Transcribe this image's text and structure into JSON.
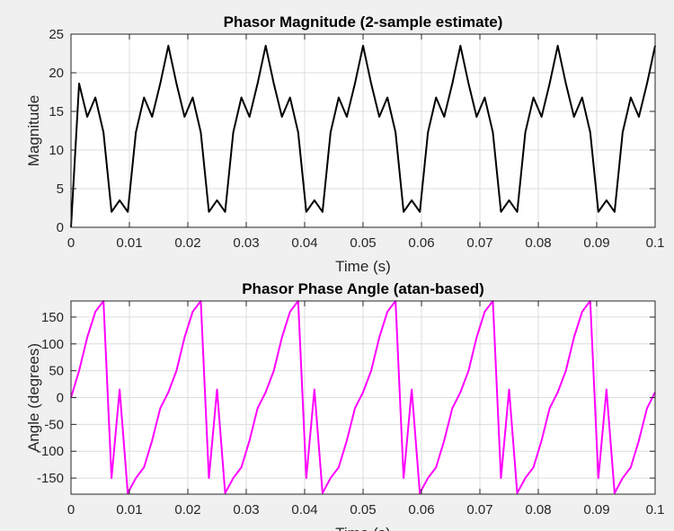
{
  "chart_data": [
    {
      "type": "line",
      "title": "Phasor Magnitude (2-sample estimate)",
      "xlabel": "Time (s)",
      "ylabel": "Magnitude",
      "xlim": [
        0,
        0.1
      ],
      "ylim": [
        0,
        25
      ],
      "xticks": [
        0,
        0.01,
        0.02,
        0.03,
        0.04,
        0.05,
        0.06,
        0.07,
        0.08,
        0.09,
        0.1
      ],
      "xtick_labels": [
        "0",
        "0.01",
        "0.02",
        "0.03",
        "0.04",
        "0.05",
        "0.06",
        "0.07",
        "0.08",
        "0.09",
        "0.1"
      ],
      "yticks": [
        0,
        5,
        10,
        15,
        20,
        25
      ],
      "ytick_labels": [
        "0",
        "5",
        "10",
        "15",
        "20",
        "25"
      ],
      "grid": true,
      "series": [
        {
          "color": "#000000",
          "x": [
            0,
            0.00139,
            0.00278,
            0.00417,
            0.00556,
            0.00694,
            0.00833,
            0.00972,
            0.01111,
            0.0125,
            0.01389,
            0.01528,
            0.01667,
            0.01806,
            0.01944,
            0.02083,
            0.02222,
            0.02361,
            0.025,
            0.02639,
            0.02778,
            0.02917,
            0.03056,
            0.03194,
            0.03333,
            0.03472,
            0.03611,
            0.0375,
            0.03889,
            0.04028,
            0.04167,
            0.04306,
            0.04444,
            0.04583,
            0.04722,
            0.04861,
            0.05,
            0.05139,
            0.05278,
            0.05417,
            0.05556,
            0.05694,
            0.05833,
            0.05972,
            0.06111,
            0.0625,
            0.06389,
            0.06528,
            0.06667,
            0.06806,
            0.06944,
            0.07083,
            0.07222,
            0.07361,
            0.075,
            0.07639,
            0.07778,
            0.07917,
            0.08056,
            0.08194,
            0.08333,
            0.08472,
            0.08611,
            0.0875,
            0.08889,
            0.09028,
            0.09167,
            0.09306,
            0.09444,
            0.09583,
            0.09722,
            0.09861,
            0.1
          ],
          "y": [
            0,
            18.6,
            14.3,
            16.8,
            12.3,
            2.0,
            3.5,
            2.0,
            12.3,
            16.8,
            14.3,
            18.6,
            23.5,
            18.6,
            14.3,
            16.8,
            12.3,
            2.0,
            3.5,
            2.0,
            12.3,
            16.8,
            14.3,
            18.6,
            23.5,
            18.6,
            14.3,
            16.8,
            12.3,
            2.0,
            3.5,
            2.0,
            12.3,
            16.8,
            14.3,
            18.6,
            23.5,
            18.6,
            14.3,
            16.8,
            12.3,
            2.0,
            3.5,
            2.0,
            12.3,
            16.8,
            14.3,
            18.6,
            23.5,
            18.6,
            14.3,
            16.8,
            12.3,
            2.0,
            3.5,
            2.0,
            12.3,
            16.8,
            14.3,
            18.6,
            23.5,
            18.6,
            14.3,
            16.8,
            12.3,
            2.0,
            3.5,
            2.0,
            12.3,
            16.8,
            14.3,
            18.6,
            23.5
          ]
        }
      ]
    },
    {
      "type": "line",
      "title": "Phasor Phase Angle (atan-based)",
      "xlabel": "Time (s)",
      "ylabel": "Angle (degrees)",
      "xlim": [
        0,
        0.1
      ],
      "ylim": [
        -180,
        180
      ],
      "xticks": [
        0,
        0.01,
        0.02,
        0.03,
        0.04,
        0.05,
        0.06,
        0.07,
        0.08,
        0.09,
        0.1
      ],
      "xtick_labels": [
        "0",
        "0.01",
        "0.02",
        "0.03",
        "0.04",
        "0.05",
        "0.06",
        "0.07",
        "0.08",
        "0.09",
        "0.1"
      ],
      "yticks": [
        -150,
        -100,
        -50,
        0,
        50,
        100,
        150
      ],
      "ytick_labels": [
        "-150",
        "-100",
        "-50",
        "0",
        "50",
        "100",
        "150"
      ],
      "grid": true,
      "series": [
        {
          "color": "#ff00ff",
          "x": [
            0,
            0.00139,
            0.00278,
            0.00417,
            0.00556,
            0.00694,
            0.00833,
            0.00972,
            0.01111,
            0.0125,
            0.01389,
            0.01528,
            0.01667,
            0.01806,
            0.01944,
            0.02083,
            0.02222,
            0.02361,
            0.025,
            0.02639,
            0.02778,
            0.02917,
            0.03056,
            0.03194,
            0.03333,
            0.03472,
            0.03611,
            0.0375,
            0.03889,
            0.04028,
            0.04167,
            0.04306,
            0.04444,
            0.04583,
            0.04722,
            0.04861,
            0.05,
            0.05139,
            0.05278,
            0.05417,
            0.05556,
            0.05694,
            0.05833,
            0.05972,
            0.06111,
            0.0625,
            0.06389,
            0.06528,
            0.06667,
            0.06806,
            0.06944,
            0.07083,
            0.07222,
            0.07361,
            0.075,
            0.07639,
            0.07778,
            0.07917,
            0.08056,
            0.08194,
            0.08333,
            0.08472,
            0.08611,
            0.0875,
            0.08889,
            0.09028,
            0.09167,
            0.09306,
            0.09444,
            0.09583,
            0.09722,
            0.09861,
            0.1
          ],
          "y": [
            0,
            50,
            112,
            160,
            180,
            -150,
            15,
            -178,
            -150,
            -130,
            -80,
            -20,
            10,
            50,
            112,
            160,
            180,
            -150,
            15,
            -178,
            -150,
            -130,
            -80,
            -20,
            10,
            50,
            112,
            160,
            180,
            -150,
            15,
            -178,
            -150,
            -130,
            -80,
            -20,
            10,
            50,
            112,
            160,
            180,
            -150,
            15,
            -178,
            -150,
            -130,
            -80,
            -20,
            10,
            50,
            112,
            160,
            180,
            -150,
            15,
            -178,
            -150,
            -130,
            -80,
            -20,
            10,
            50,
            112,
            160,
            180,
            -150,
            15,
            -178,
            -150,
            -130,
            -80,
            -20,
            10
          ]
        }
      ]
    }
  ]
}
